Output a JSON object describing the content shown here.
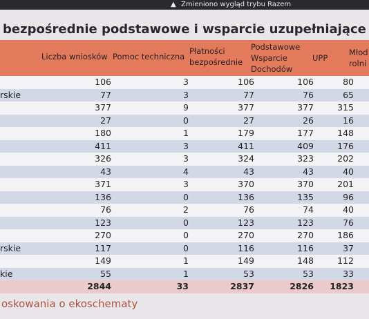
{
  "banner": {
    "text": "Zmieniono wygląd trybu Razem"
  },
  "title": "bezpośrednie podstawowe i wsparcie uzupełniające",
  "table": {
    "columns": [
      "Liczba wniosków",
      "Pomoc techniczna",
      "Płatności bezpośrednie",
      "Podstawowe Wsparcie Dochodów",
      "UPP",
      "Młod rolni"
    ],
    "rows": [
      {
        "cells": [
          106,
          3,
          106,
          106,
          80
        ]
      },
      {
        "label": "rskie",
        "cells": [
          77,
          3,
          77,
          76,
          65
        ]
      },
      {
        "cells": [
          377,
          9,
          377,
          377,
          315
        ]
      },
      {
        "cells": [
          27,
          0,
          27,
          26,
          16
        ]
      },
      {
        "cells": [
          180,
          1,
          179,
          177,
          148
        ]
      },
      {
        "cells": [
          411,
          3,
          411,
          409,
          176
        ]
      },
      {
        "cells": [
          326,
          3,
          324,
          323,
          202
        ]
      },
      {
        "cells": [
          43,
          4,
          43,
          43,
          40
        ]
      },
      {
        "cells": [
          371,
          3,
          370,
          370,
          201
        ]
      },
      {
        "cells": [
          136,
          0,
          136,
          135,
          96
        ]
      },
      {
        "cells": [
          76,
          2,
          76,
          74,
          40
        ]
      },
      {
        "cells": [
          123,
          0,
          123,
          123,
          76
        ]
      },
      {
        "cells": [
          270,
          0,
          270,
          270,
          186
        ]
      },
      {
        "label": "rskie",
        "cells": [
          117,
          0,
          116,
          116,
          37
        ]
      },
      {
        "cells": [
          149,
          1,
          149,
          148,
          112
        ]
      },
      {
        "label": "kie",
        "cells": [
          55,
          1,
          53,
          53,
          33
        ]
      }
    ],
    "total": [
      2844,
      33,
      2837,
      2826,
      1823
    ]
  },
  "footer": "oskowania o ekoschematy"
}
